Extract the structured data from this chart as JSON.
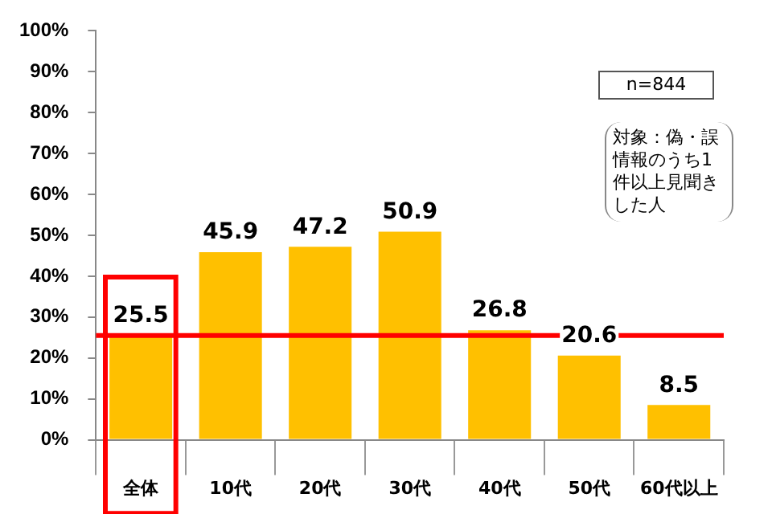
{
  "chart_data": {
    "type": "bar",
    "categories": [
      "全体",
      "10代",
      "20代",
      "30代",
      "40代",
      "50代",
      "60代以上"
    ],
    "values": [
      25.5,
      45.9,
      47.2,
      50.9,
      26.8,
      20.6,
      8.5
    ],
    "color": "#ffc000",
    "ylim": [
      0,
      100
    ],
    "yticks": [
      {
        "value": 0,
        "label": "0%"
      },
      {
        "value": 10,
        "label": "10%"
      },
      {
        "value": 20,
        "label": "20%"
      },
      {
        "value": 30,
        "label": "30%"
      },
      {
        "value": 40,
        "label": "40%"
      },
      {
        "value": 50,
        "label": "50%"
      },
      {
        "value": 60,
        "label": "60%"
      },
      {
        "value": 70,
        "label": "70%"
      },
      {
        "value": 80,
        "label": "80%"
      },
      {
        "value": 90,
        "label": "90%"
      },
      {
        "value": 100,
        "label": "100%"
      }
    ],
    "data_labels": true,
    "grid": false,
    "legend": false,
    "ref_lines": [
      {
        "axis": "y",
        "value": 25.5,
        "color": "#ff0000"
      }
    ],
    "annotations": [
      "n=844",
      "対象：偽・誤情報のうち1件以上見聞きした人"
    ]
  }
}
